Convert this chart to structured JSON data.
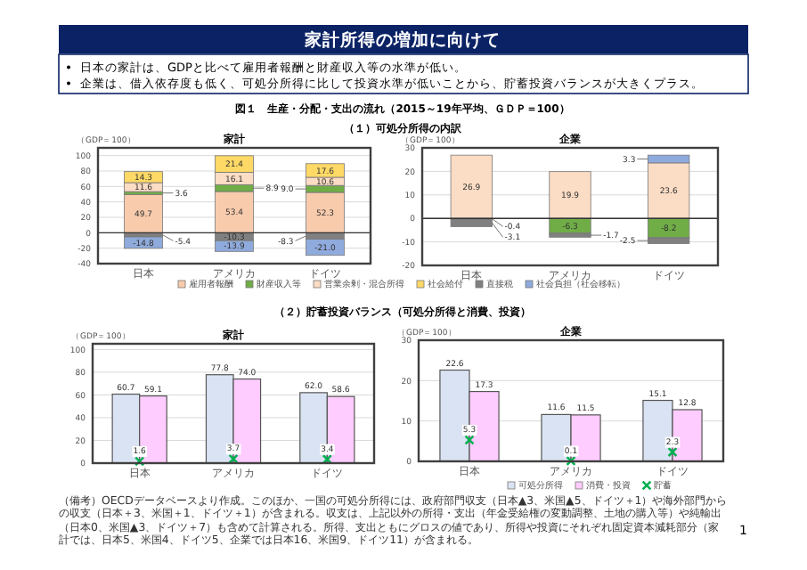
{
  "chart_data": [
    {
      "type": "bar",
      "stacked": true,
      "title": "家計",
      "ylabel": "（GDP＝100）",
      "categories": [
        "日本",
        "アメリカ",
        "ドイツ"
      ],
      "ylim": [
        -40,
        110
      ],
      "yticks": [
        -40,
        -20,
        0,
        20,
        40,
        60,
        80,
        100
      ],
      "grid": "y",
      "legend": "bottom",
      "annotations": [
        "家計所得の増加に向けて",
        "日本の家計は、GDPと比べて雇用者報酬と財産収入等の水準が低い。",
        "企業は、借入依存度も低く、可処分所得に比して投資水準が低いことから、貯蓄投資バランスが大きくプラス。",
        "図１　生産・分配・支出の流れ（2015～19年平均、ＧＤＰ＝100）",
        "（１）可処分所得の内訳"
      ],
      "series": [
        {
          "name": "雇用者報酬",
          "color": "#f8cbad",
          "values": [
            49.7,
            53.4,
            52.3
          ],
          "value_labels": [
            "49.7",
            "53.4",
            "52.3"
          ]
        },
        {
          "name": "財産収入等",
          "color": "#70ad47",
          "values": [
            3.6,
            8.9,
            9.0
          ],
          "value_labels": [
            "3.6",
            "8.9",
            "9.0"
          ]
        },
        {
          "name": "営業余剰・混合所得",
          "color": "#fbdcc4",
          "values": [
            11.6,
            16.1,
            10.6
          ],
          "value_labels": [
            "11.6",
            "16.1",
            "10.6"
          ]
        },
        {
          "name": "社会給付",
          "color": "#ffd966",
          "values": [
            14.3,
            21.4,
            17.6
          ],
          "value_labels": [
            "14.3",
            "21.4",
            "17.6"
          ]
        },
        {
          "name": "直接税",
          "color": "#808080",
          "values": [
            -5.4,
            -10.3,
            -8.3
          ],
          "value_labels": [
            "-5.4",
            "-10.3",
            "-8.3"
          ]
        },
        {
          "name": "社会負担（社会移転）",
          "color": "#8faadc",
          "values": [
            -14.8,
            -13.9,
            -21.0
          ],
          "value_labels": [
            "-14.8",
            "-13.9",
            "-21.0"
          ]
        }
      ]
    },
    {
      "type": "bar",
      "stacked": true,
      "title": "企業",
      "ylabel": "（GDP＝100）",
      "categories": [
        "日本",
        "アメリカ",
        "ドイツ"
      ],
      "ylim": [
        -20,
        30
      ],
      "yticks": [
        -20,
        -10,
        0,
        10,
        20,
        30
      ],
      "grid": "y",
      "series": [
        {
          "color": "#fbdcc4",
          "values": [
            26.9,
            19.9,
            23.6
          ],
          "value_labels": [
            "26.9",
            "19.9",
            "23.6"
          ]
        },
        {
          "color": "#70ad47",
          "values": [
            -0.4,
            -6.3,
            -8.2
          ],
          "value_labels": [
            "-0.4",
            "-6.3",
            "-8.2"
          ]
        },
        {
          "color": "#808080",
          "values": [
            -3.1,
            -1.7,
            -2.5
          ],
          "value_labels": [
            "-3.1",
            "-1.7",
            "-2.5"
          ]
        },
        {
          "color": "#8faadc",
          "values": [
            null,
            null,
            3.3
          ],
          "value_labels": [
            null,
            null,
            "3.3"
          ]
        }
      ]
    },
    {
      "type": "bar",
      "title": "家計",
      "ylabel": "（GDP＝100）",
      "categories": [
        "日本",
        "アメリカ",
        "ドイツ"
      ],
      "ylim": [
        0,
        105
      ],
      "yticks": [
        0,
        20,
        40,
        60,
        80,
        100
      ],
      "grid": "y",
      "annotations": [
        "（２）貯蓄投資バランス（可処分所得と消費、投資）"
      ],
      "series": [
        {
          "color": "#dae3f3",
          "values": [
            60.7,
            77.8,
            62.0
          ],
          "value_labels": [
            "60.7",
            "77.8",
            "62.0"
          ]
        },
        {
          "color": "#ffccff",
          "values": [
            59.1,
            74.0,
            58.6
          ],
          "value_labels": [
            "59.1",
            "74.0",
            "58.6"
          ]
        },
        {
          "type": "scatter",
          "marker": "cross",
          "color": "#00b050",
          "x": [
            "日本",
            "アメリカ",
            "ドイツ"
          ],
          "values": [
            1.6,
            3.7,
            3.4
          ],
          "value_labels": [
            "1.6",
            "3.7",
            "3.4"
          ]
        }
      ]
    },
    {
      "type": "bar",
      "title": "企業",
      "ylabel": "（GDP＝100）",
      "categories": [
        "日本",
        "アメリカ",
        "ドイツ"
      ],
      "ylim": [
        0,
        30
      ],
      "yticks": [
        0,
        10,
        20,
        30
      ],
      "grid": "y",
      "legend": "bottom",
      "annotations": [
        "（備考）OECDデータベースより作成。このほか、一国の可処分所得には、政府部門収支（日本▲3、米国▲5、ドイツ＋1）や海外部門からの収支（日本＋3、米国＋1、ドイツ＋1）が含まれる。収支は、上記以外の所得・支出（年金受給権の変動調整、土地の購入等）や純輸出（日本0、米国▲3、ドイツ＋7）も含めて計算される。所得、支出ともにグロスの値であり、所得や投資にそれぞれ固定資本減耗部分（家計では、日本5、米国4、ドイツ5、企業では日本16、米国9、ドイツ11）が含まれる。",
        "1"
      ],
      "series": [
        {
          "name": "可処分所得",
          "color": "#dae3f3",
          "values": [
            22.6,
            11.6,
            15.1
          ],
          "value_labels": [
            "22.6",
            "11.6",
            "15.1"
          ]
        },
        {
          "name": "消費・投資",
          "color": "#ffccff",
          "values": [
            17.3,
            11.5,
            12.8
          ],
          "value_labels": [
            "17.3",
            "11.5",
            "12.8"
          ]
        },
        {
          "name": "貯蓄",
          "type": "scatter",
          "marker": "cross",
          "color": "#00b050",
          "x": [
            "日本",
            "アメリカ",
            "ドイツ"
          ],
          "values": [
            5.3,
            0.1,
            2.3
          ],
          "value_labels": [
            "5.3",
            "0.1",
            "2.3"
          ]
        }
      ]
    }
  ]
}
